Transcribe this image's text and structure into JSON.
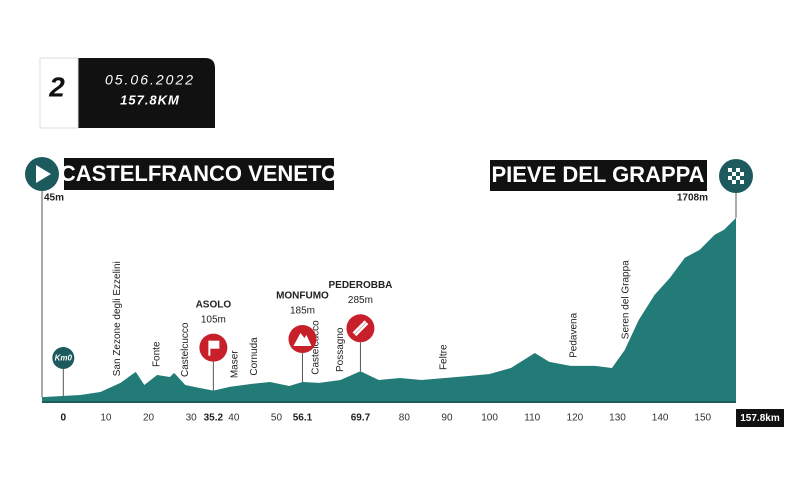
{
  "header": {
    "stage": "2",
    "date": "05.06.2022",
    "distance": "157.8KM"
  },
  "chart_data": {
    "type": "area",
    "color": "#237b78",
    "x": [
      -5,
      4,
      8.7,
      13.4,
      17,
      19,
      22,
      25,
      26,
      28.6,
      32,
      35.2,
      39,
      44,
      48.5,
      53,
      56.1,
      60,
      65,
      69.7,
      74,
      79,
      84,
      89.5,
      95.4,
      100,
      105,
      110.6,
      114,
      119,
      124.7,
      128.7,
      131.7,
      135,
      138.7,
      142.3,
      145.8,
      149.3,
      152.8,
      155,
      157.8
    ],
    "values": [
      45,
      65,
      93,
      177,
      280,
      158,
      250,
      232,
      270,
      158,
      130,
      105,
      140,
      167,
      186,
      149,
      185,
      177,
      204,
      285,
      204,
      223,
      204,
      223,
      242,
      260,
      316,
      455,
      372,
      335,
      335,
      316,
      483,
      762,
      994,
      1152,
      1338,
      1413,
      1552,
      1598,
      1708
    ],
    "xlim": [
      -5,
      157.8
    ],
    "ylim": [
      0,
      1800
    ],
    "xticks": [
      0,
      10,
      20,
      30,
      40,
      50,
      80,
      90,
      100,
      110,
      120,
      130,
      140,
      150,
      {
        "value": 157.8,
        "label": "157.8km"
      }
    ],
    "start": {
      "name": "CASTELFRANCO VENETO",
      "value": 45,
      "value_label": "45m"
    },
    "finish": {
      "name": "PIEVE DEL GRAPPA",
      "value": 1708,
      "value_label": "1708m"
    },
    "km0": {
      "label": "Km0",
      "x": 0
    },
    "climbs": {
      "names": [
        "ASOLO",
        "MONFUMO",
        "PEDEROBBA"
      ],
      "x": [
        35.2,
        56.1,
        69.7
      ],
      "values": [
        105,
        185,
        285
      ],
      "value_labels": [
        "105m",
        "185m",
        "285m"
      ]
    },
    "places": {
      "names": [
        "San Zezone degli Ezzelini",
        "Fonte",
        "Castelcucco",
        "Maser",
        "Cornuda",
        "Castelcucco",
        "Possagno",
        "Feltre",
        "Pedavena",
        "Seren del Grappa"
      ],
      "x": [
        12.7,
        22,
        28.6,
        40.3,
        44.8,
        59.3,
        65,
        89.3,
        119.8,
        132
      ]
    }
  }
}
